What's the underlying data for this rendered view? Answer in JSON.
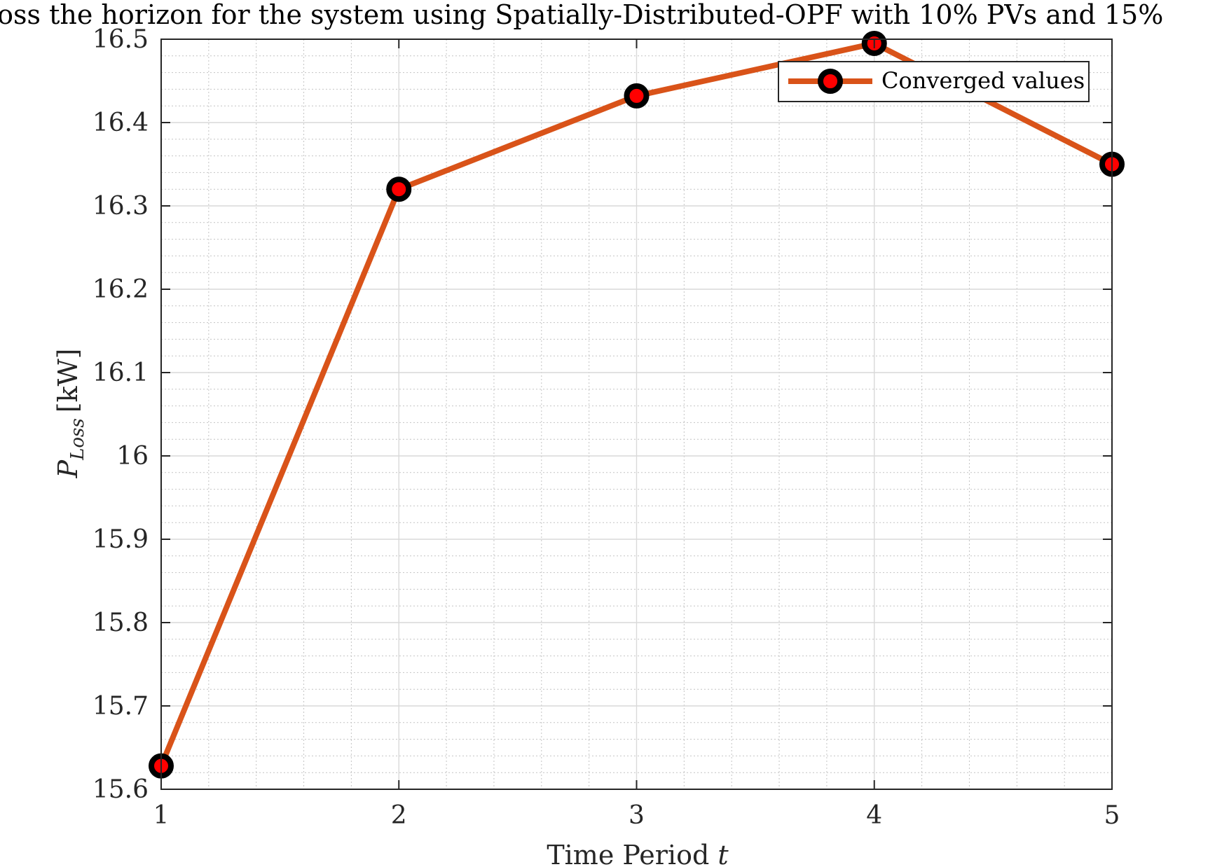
{
  "chart_data": {
    "type": "line",
    "title": "ross the horizon for the system using Spatially-Distributed-OPF with 10% PVs and 15%",
    "xlabel": "Time Period",
    "xlabel_var": "t",
    "ylabel_main": "P",
    "ylabel_sub": "Loss",
    "ylabel_unit": "[kW]",
    "xlim": [
      1,
      5
    ],
    "ylim": [
      15.6,
      16.5
    ],
    "x_ticks": [
      1,
      2,
      3,
      4,
      5
    ],
    "y_ticks": [
      15.6,
      15.7,
      15.8,
      15.9,
      16,
      16.1,
      16.2,
      16.3,
      16.4,
      16.5
    ],
    "x_tick_labels": [
      "1",
      "2",
      "3",
      "4",
      "5"
    ],
    "y_tick_labels": [
      "15.6",
      "15.7",
      "15.8",
      "15.9",
      "16",
      "16.1",
      "16.2",
      "16.3",
      "16.4",
      "16.5"
    ],
    "grid": "major and minor",
    "legend_position": "top-right",
    "series": [
      {
        "name": "Converged values",
        "line_color": "#d95319",
        "marker_edge_color": "#000000",
        "marker_face_color": "#ff0000",
        "x": [
          1,
          2,
          3,
          4,
          5
        ],
        "values": [
          15.628,
          16.32,
          16.432,
          16.495,
          16.35
        ]
      }
    ]
  }
}
